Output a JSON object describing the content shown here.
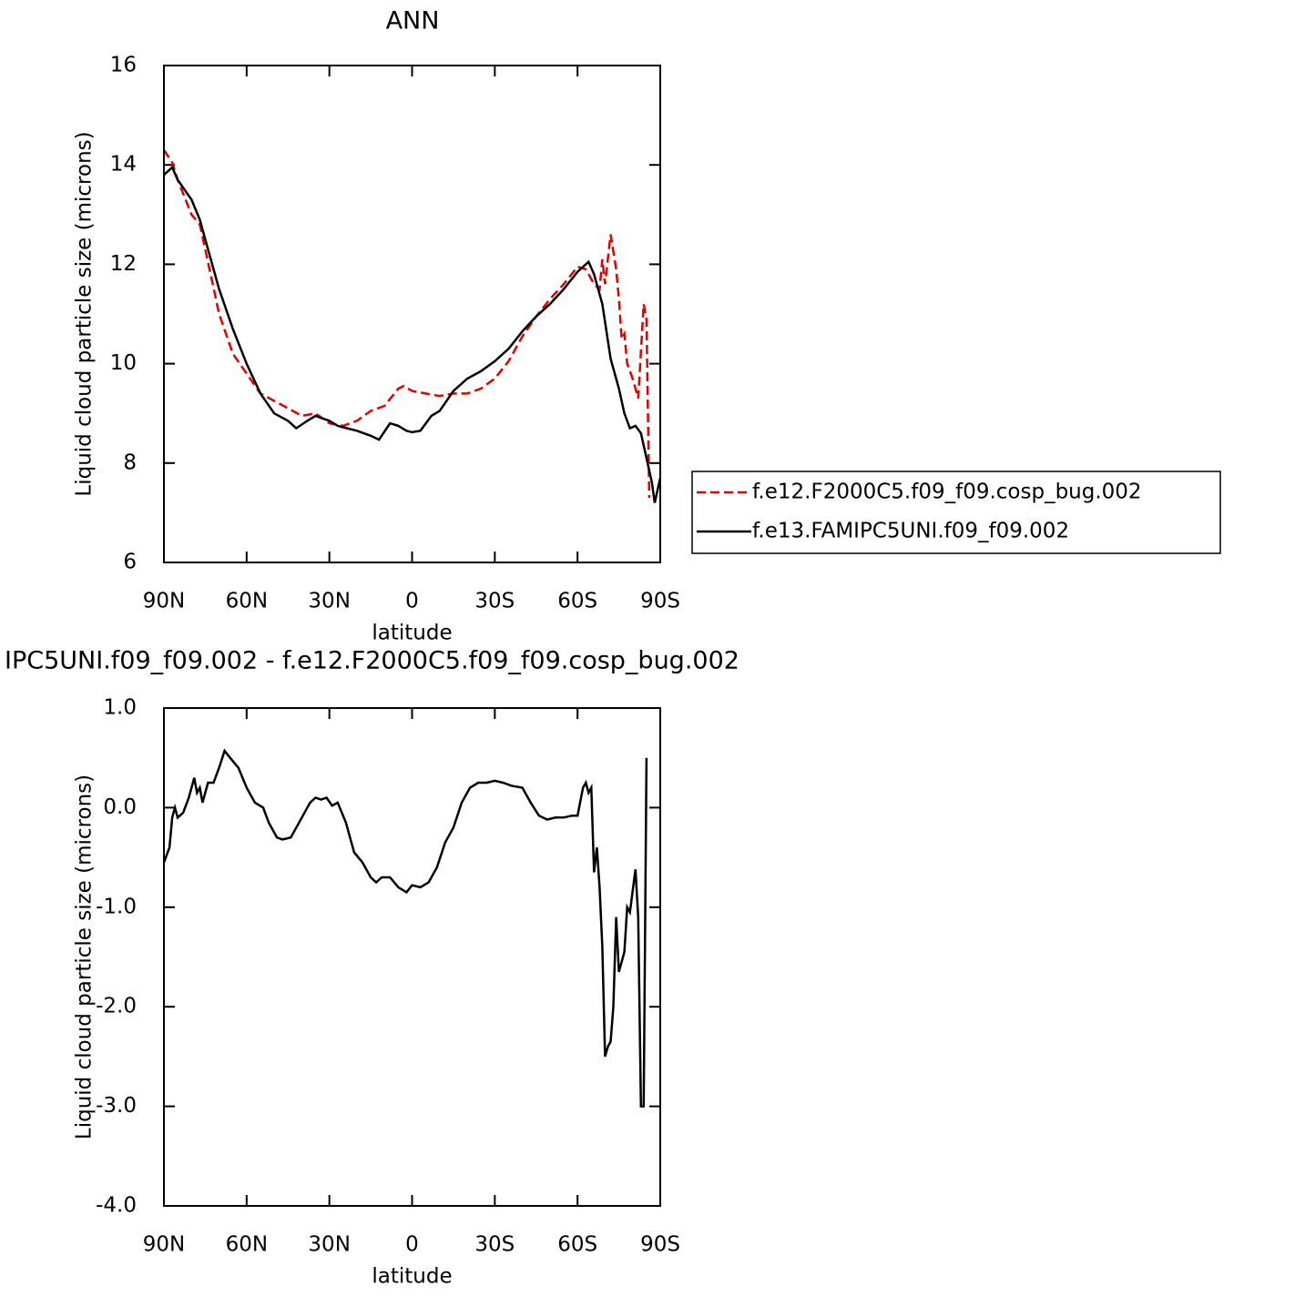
{
  "chart_data": [
    {
      "type": "line",
      "title": "ANN",
      "xlabel": "latitude",
      "ylabel": "Liquid cloud particle size (microns)",
      "xlim": [
        90,
        -90
      ],
      "ylim": [
        6,
        16
      ],
      "xticks": [
        {
          "value": 90,
          "label": "90N"
        },
        {
          "value": 60,
          "label": "60N"
        },
        {
          "value": 30,
          "label": "30N"
        },
        0,
        {
          "value": -30,
          "label": "30S"
        },
        {
          "value": -60,
          "label": "60S"
        },
        {
          "value": -90,
          "label": "90S"
        }
      ],
      "yticks": [
        6,
        8,
        10,
        12,
        14,
        16
      ],
      "legend": "right",
      "series": [
        {
          "name": "f.e12.F2000C5.f09_f09.cosp_bug.002",
          "color": "#e00000",
          "dash": true,
          "x": [
            90,
            87,
            85,
            80,
            77,
            75,
            70,
            65,
            60,
            55,
            50,
            45,
            40,
            35,
            30,
            25,
            20,
            15,
            10,
            5,
            3,
            0,
            -5,
            -10,
            -15,
            -20,
            -25,
            -30,
            -35,
            -40,
            -45,
            -50,
            -55,
            -60,
            -63,
            -66,
            -68,
            -69,
            -70,
            -72,
            -74,
            -75,
            -76,
            -77,
            -78,
            -80,
            -82,
            -84,
            -85,
            -86
          ],
          "values": [
            14.3,
            14.05,
            13.7,
            13.0,
            12.8,
            12.3,
            11.0,
            10.2,
            9.8,
            9.4,
            9.25,
            9.1,
            8.95,
            9.0,
            8.8,
            8.75,
            8.85,
            9.05,
            9.15,
            9.5,
            9.55,
            9.45,
            9.4,
            9.35,
            9.4,
            9.4,
            9.5,
            9.7,
            10.05,
            10.55,
            10.95,
            11.3,
            11.6,
            11.95,
            11.9,
            11.6,
            11.5,
            12.1,
            11.6,
            12.6,
            11.9,
            11.3,
            10.5,
            10.6,
            10.0,
            9.7,
            9.3,
            11.2,
            10.9,
            7.3
          ]
        },
        {
          "name": "f.e13.FAMIPC5UNI.f09_f09.002",
          "color": "#000000",
          "dash": false,
          "x": [
            90,
            87,
            85,
            80,
            77,
            75,
            70,
            65,
            60,
            55,
            50,
            45,
            42,
            38,
            35,
            30,
            27,
            25,
            20,
            15,
            12,
            8,
            5,
            2,
            0,
            -3,
            -7,
            -10,
            -15,
            -20,
            -25,
            -30,
            -35,
            -40,
            -45,
            -50,
            -55,
            -60,
            -64,
            -66,
            -69,
            -72,
            -75,
            -77,
            -79,
            -81,
            -83,
            -85,
            -87,
            -88,
            -90
          ],
          "values": [
            13.8,
            13.95,
            13.7,
            13.3,
            12.9,
            12.5,
            11.5,
            10.7,
            10.0,
            9.4,
            9.0,
            8.85,
            8.7,
            8.85,
            8.95,
            8.85,
            8.75,
            8.72,
            8.65,
            8.55,
            8.47,
            8.8,
            8.75,
            8.65,
            8.62,
            8.65,
            8.95,
            9.05,
            9.45,
            9.7,
            9.85,
            10.05,
            10.3,
            10.65,
            10.95,
            11.2,
            11.5,
            11.85,
            12.05,
            11.8,
            11.2,
            10.1,
            9.5,
            9.0,
            8.7,
            8.75,
            8.6,
            8.1,
            7.6,
            7.2,
            7.7
          ]
        }
      ]
    },
    {
      "type": "line",
      "title": "IPC5UNI.f09_f09.002 - f.e12.F2000C5.f09_f09.cosp_bug.002",
      "xlabel": "latitude",
      "ylabel": "Liquid cloud particle size (microns)",
      "xlim": [
        90,
        -90
      ],
      "ylim": [
        -4,
        1
      ],
      "xticks": [
        {
          "value": 90,
          "label": "90N"
        },
        {
          "value": 60,
          "label": "60N"
        },
        {
          "value": 30,
          "label": "30N"
        },
        0,
        {
          "value": -30,
          "label": "30S"
        },
        {
          "value": -60,
          "label": "60S"
        },
        {
          "value": -90,
          "label": "90S"
        }
      ],
      "yticks": [
        {
          "value": 1,
          "label": "1.0"
        },
        {
          "value": 0,
          "label": "0.0"
        },
        {
          "value": -1,
          "label": "-1.0"
        },
        {
          "value": -2,
          "label": "-2.0"
        },
        {
          "value": -3,
          "label": "-3.0"
        },
        {
          "value": -4,
          "label": "-4.0"
        }
      ],
      "series": [
        {
          "color": "#000000",
          "dash": false,
          "x": [
            90,
            88,
            87,
            86,
            85,
            83,
            81,
            79,
            78,
            77,
            76,
            74,
            72,
            70,
            68,
            66,
            63,
            60,
            57,
            54,
            52,
            49,
            47,
            44,
            41,
            37,
            35,
            33,
            31,
            29,
            27,
            24,
            21,
            18,
            15,
            13,
            11,
            8,
            5,
            2,
            0,
            -3,
            -6,
            -9,
            -12,
            -15,
            -18,
            -21,
            -24,
            -27,
            -30,
            -33,
            -36,
            -40,
            -43,
            -46,
            -49,
            -52,
            -55,
            -58,
            -60,
            -62,
            -63,
            -64,
            -65,
            -66,
            -67,
            -68,
            -69,
            -70,
            -71,
            -72,
            -73,
            -74,
            -75,
            -77,
            -78,
            -79,
            -81,
            -82,
            -83,
            -84,
            -85
          ],
          "values": [
            -0.55,
            -0.4,
            -0.1,
            0,
            -0.1,
            -0.05,
            0.1,
            0.3,
            0.15,
            0.2,
            0.05,
            0.25,
            0.25,
            0.4,
            0.57,
            0.5,
            0.4,
            0.2,
            0.05,
            0,
            -0.15,
            -0.3,
            -0.32,
            -0.3,
            -0.15,
            0.05,
            0.1,
            0.08,
            0.1,
            0.02,
            0.05,
            -0.15,
            -0.45,
            -0.55,
            -0.7,
            -0.75,
            -0.7,
            -0.7,
            -0.8,
            -0.85,
            -0.78,
            -0.8,
            -0.75,
            -0.6,
            -0.35,
            -0.2,
            0.05,
            0.2,
            0.25,
            0.25,
            0.27,
            0.25,
            0.22,
            0.2,
            0.05,
            -0.08,
            -0.12,
            -0.1,
            -0.1,
            -0.08,
            -0.08,
            0.2,
            0.25,
            0.15,
            0.2,
            -0.65,
            -0.4,
            -0.8,
            -1.4,
            -2.5,
            -2.4,
            -2.35,
            -2.0,
            -1.1,
            -1.65,
            -1.45,
            -1.0,
            -1.05,
            -0.62,
            -1.1,
            -3.0,
            -3.0,
            0.5
          ]
        }
      ]
    }
  ]
}
